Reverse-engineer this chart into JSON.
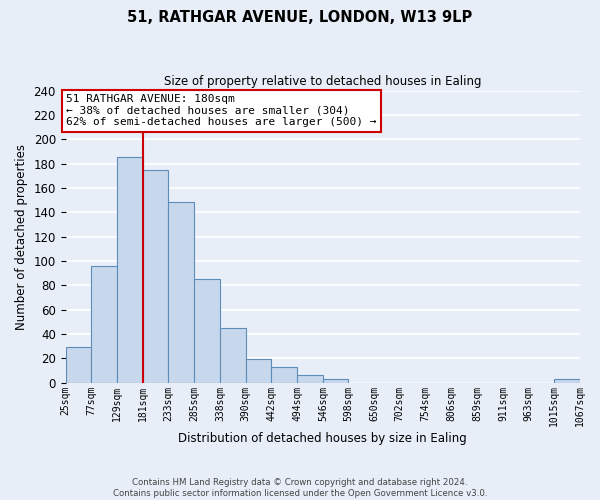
{
  "title": "51, RATHGAR AVENUE, LONDON, W13 9LP",
  "subtitle": "Size of property relative to detached houses in Ealing",
  "xlabel": "Distribution of detached houses by size in Ealing",
  "ylabel": "Number of detached properties",
  "bar_color": "#c8d8ec",
  "bar_edge_color": "#5b8db8",
  "background_color": "#e8eef8",
  "plot_bg_color": "#e8eef8",
  "grid_color": "#ffffff",
  "property_line_x": 181,
  "property_line_color": "#cc0000",
  "annotation_line1": "51 RATHGAR AVENUE: 180sqm",
  "annotation_line2": "← 38% of detached houses are smaller (304)",
  "annotation_line3": "62% of semi-detached houses are larger (500) →",
  "annotation_box_edge": "#cc0000",
  "bin_edges": [
    25,
    77,
    129,
    181,
    233,
    285,
    338,
    390,
    442,
    494,
    546,
    598,
    650,
    702,
    754,
    806,
    859,
    911,
    963,
    1015,
    1067
  ],
  "bar_heights": [
    29,
    96,
    185,
    175,
    148,
    85,
    45,
    19,
    13,
    6,
    3,
    0,
    0,
    0,
    0,
    0,
    0,
    0,
    0,
    3
  ],
  "ylim": [
    0,
    240
  ],
  "yticks": [
    0,
    20,
    40,
    60,
    80,
    100,
    120,
    140,
    160,
    180,
    200,
    220,
    240
  ],
  "tick_labels": [
    "25sqm",
    "77sqm",
    "129sqm",
    "181sqm",
    "233sqm",
    "285sqm",
    "338sqm",
    "390sqm",
    "442sqm",
    "494sqm",
    "546sqm",
    "598sqm",
    "650sqm",
    "702sqm",
    "754sqm",
    "806sqm",
    "859sqm",
    "911sqm",
    "963sqm",
    "1015sqm",
    "1067sqm"
  ],
  "footer_line1": "Contains HM Land Registry data © Crown copyright and database right 2024.",
  "footer_line2": "Contains public sector information licensed under the Open Government Licence v3.0."
}
